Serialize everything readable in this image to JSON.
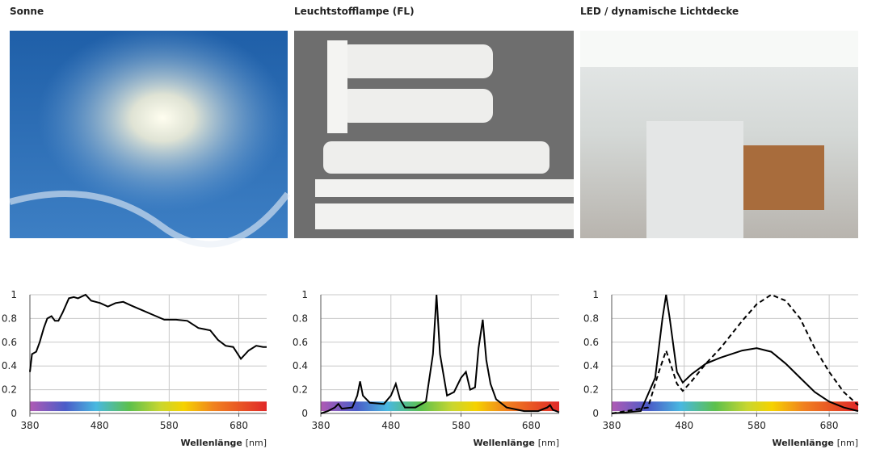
{
  "chart_data": [
    {
      "type": "line",
      "title": "Sonne",
      "xlabel": "Wellenlänge",
      "xunit": "[nm]",
      "xlim": [
        380,
        720
      ],
      "xticks": [
        380,
        480,
        580,
        680
      ],
      "ylim": [
        0,
        1
      ],
      "yticks": [
        0,
        0.2,
        0.4,
        0.6,
        0.8,
        1
      ],
      "grid": true,
      "series": [
        {
          "color": "#000000",
          "x": [
            380,
            383,
            389,
            394,
            400,
            405,
            411,
            416,
            421,
            427,
            436,
            443,
            449,
            460,
            468,
            481,
            492,
            503,
            514,
            525,
            541,
            557,
            573,
            590,
            606,
            622,
            639,
            650,
            661,
            672,
            683,
            694,
            705,
            715,
            720
          ],
          "values": [
            0.35,
            0.5,
            0.52,
            0.6,
            0.72,
            0.8,
            0.82,
            0.78,
            0.78,
            0.85,
            0.97,
            0.98,
            0.97,
            1.0,
            0.95,
            0.93,
            0.9,
            0.93,
            0.94,
            0.91,
            0.87,
            0.83,
            0.79,
            0.79,
            0.78,
            0.72,
            0.7,
            0.62,
            0.57,
            0.56,
            0.46,
            0.53,
            0.57,
            0.56,
            0.56
          ]
        }
      ]
    },
    {
      "type": "line",
      "title": "Leuchtstofflampe (FL)",
      "xlabel": "Wellenlänge",
      "xunit": "[nm]",
      "xlim": [
        380,
        720
      ],
      "xticks": [
        380,
        480,
        580,
        680
      ],
      "ylim": [
        0,
        1
      ],
      "yticks": [
        0,
        0.2,
        0.4,
        0.6,
        0.8,
        1
      ],
      "grid": true,
      "series": [
        {
          "color": "#000000",
          "x": [
            380,
            390,
            400,
            405,
            410,
            425,
            432,
            436,
            440,
            450,
            470,
            480,
            487,
            493,
            500,
            515,
            530,
            540,
            545,
            550,
            560,
            570,
            580,
            587,
            593,
            600,
            605,
            611,
            616,
            622,
            630,
            645,
            670,
            690,
            703,
            707,
            711,
            720
          ],
          "values": [
            0.0,
            0.02,
            0.05,
            0.08,
            0.04,
            0.05,
            0.15,
            0.27,
            0.15,
            0.09,
            0.08,
            0.15,
            0.25,
            0.12,
            0.05,
            0.05,
            0.1,
            0.5,
            1.0,
            0.5,
            0.15,
            0.18,
            0.3,
            0.35,
            0.2,
            0.22,
            0.55,
            0.79,
            0.45,
            0.25,
            0.12,
            0.05,
            0.02,
            0.02,
            0.05,
            0.07,
            0.03,
            0.01
          ]
        }
      ]
    },
    {
      "type": "line",
      "title": "LED / dynamische Lichtdecke",
      "xlabel": "Wellenlänge",
      "xunit": "[nm]",
      "xlim": [
        380,
        720
      ],
      "xticks": [
        380,
        480,
        580,
        680
      ],
      "ylim": [
        0,
        1
      ],
      "yticks": [
        0,
        0.2,
        0.4,
        0.6,
        0.8,
        1
      ],
      "grid": true,
      "series": [
        {
          "color": "#000000",
          "dash": false,
          "x": [
            380,
            420,
            440,
            450,
            455,
            460,
            470,
            478,
            490,
            510,
            530,
            560,
            580,
            600,
            620,
            640,
            660,
            680,
            700,
            720
          ],
          "values": [
            0,
            0.02,
            0.3,
            0.8,
            1.0,
            0.8,
            0.35,
            0.26,
            0.33,
            0.42,
            0.47,
            0.53,
            0.55,
            0.52,
            0.42,
            0.3,
            0.18,
            0.1,
            0.05,
            0.02
          ]
        },
        {
          "color": "#000000",
          "dash": true,
          "x": [
            380,
            430,
            445,
            455,
            462,
            470,
            478,
            490,
            510,
            530,
            560,
            580,
            600,
            620,
            640,
            660,
            680,
            700,
            720
          ],
          "values": [
            0,
            0.05,
            0.35,
            0.53,
            0.4,
            0.25,
            0.19,
            0.27,
            0.42,
            0.55,
            0.78,
            0.92,
            1.0,
            0.95,
            0.8,
            0.55,
            0.35,
            0.18,
            0.07
          ]
        }
      ]
    }
  ]
}
